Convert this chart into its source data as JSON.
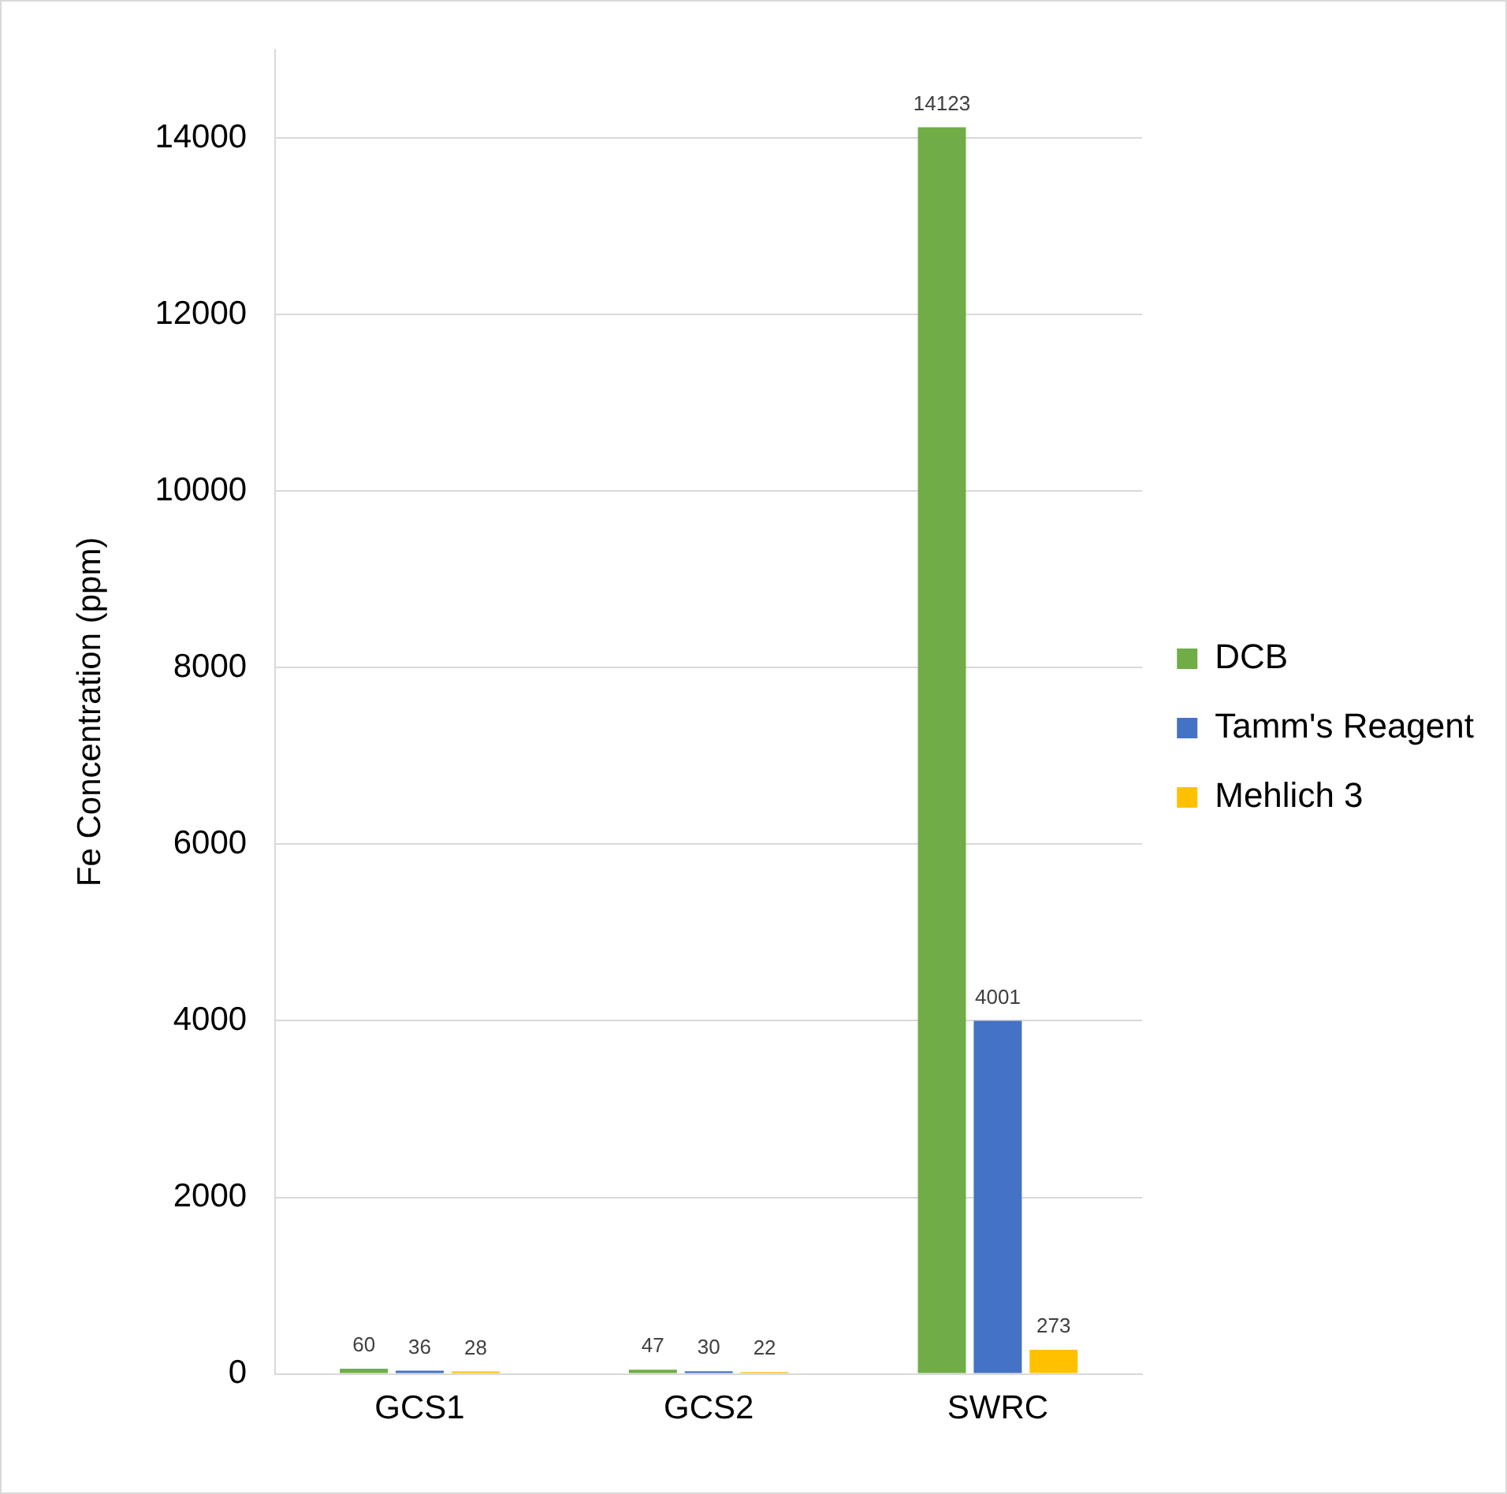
{
  "chart_data": {
    "type": "bar",
    "ylabel": "Fe Concentration (ppm)",
    "categories": [
      "GCS1",
      "GCS2",
      "SWRC"
    ],
    "series": [
      {
        "name": "DCB",
        "color": "#70ad47",
        "values": [
          60,
          47,
          14123
        ]
      },
      {
        "name": "Tamm's Reagent",
        "color": "#4472c4",
        "values": [
          36,
          30,
          4001
        ]
      },
      {
        "name": "Mehlich 3",
        "color": "#ffc000",
        "values": [
          28,
          22,
          273
        ]
      }
    ],
    "ylim": [
      0,
      15000
    ],
    "yticks": [
      0,
      2000,
      4000,
      6000,
      8000,
      10000,
      12000,
      14000
    ],
    "grid": "y",
    "legend": "right",
    "data_labels": true
  }
}
